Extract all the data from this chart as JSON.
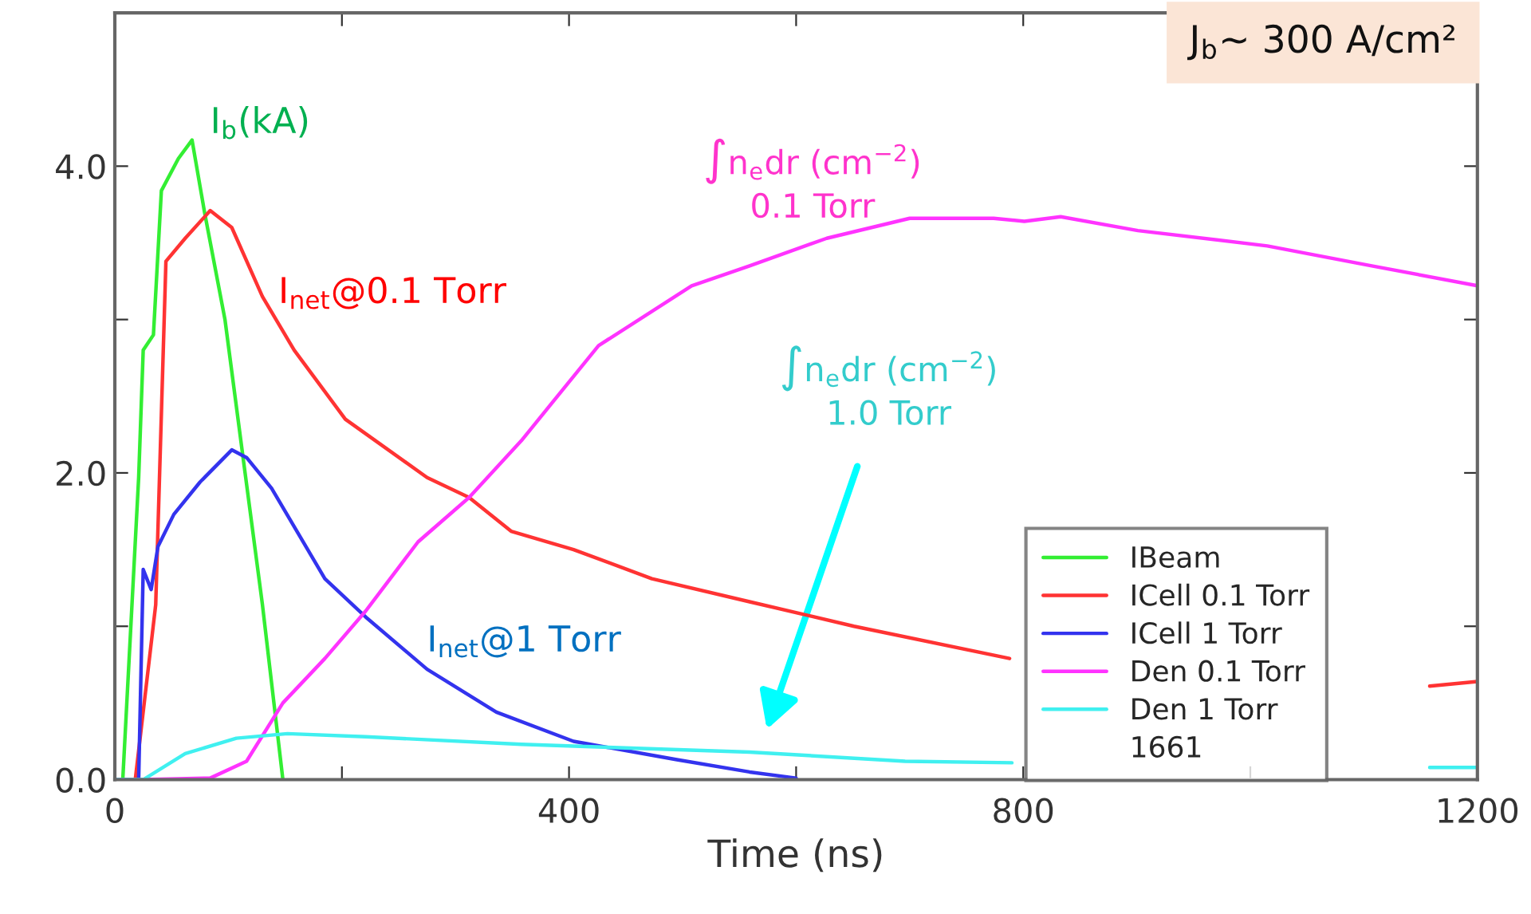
{
  "chart_data": {
    "type": "line",
    "xlabel": "Time (ns)",
    "xlim": [
      0,
      1200
    ],
    "ylim": [
      0,
      5
    ],
    "xticks": [
      0,
      {
        "value": 200,
        "label": null
      },
      400,
      {
        "value": 600,
        "label": null
      },
      800,
      {
        "value": 1000,
        "label": null
      },
      1200
    ],
    "yticks": [
      {
        "value": 0,
        "label": "0.0"
      },
      {
        "value": 1,
        "label": null
      },
      {
        "value": 2,
        "label": "2.0"
      },
      {
        "value": 3,
        "label": null
      },
      {
        "value": 4,
        "label": "4.0"
      }
    ],
    "grid": false,
    "legend": "bottom right",
    "line_style": "solid",
    "marker": "none",
    "series": [
      {
        "name": "IBeam",
        "color": "#33ee33",
        "x": [
          0,
          7,
          21,
          25,
          34,
          41,
          56,
          68,
          79,
          97,
          114,
          130,
          148
        ],
        "values": [
          0,
          0,
          1.97,
          2.8,
          2.9,
          3.84,
          4.05,
          4.17,
          3.7,
          3.0,
          2.04,
          1.14,
          0
        ]
      },
      {
        "name": "ICell 0.1 Torr",
        "color": "#ff3333",
        "x": [
          0,
          18,
          36,
          45,
          62,
          84,
          103,
          130,
          158,
          203,
          275,
          312,
          349,
          404,
          473,
          559,
          651,
          788,
          900,
          1158,
          1200
        ],
        "values": [
          0,
          0,
          1.14,
          3.38,
          3.53,
          3.71,
          3.6,
          3.15,
          2.8,
          2.35,
          1.97,
          1.84,
          1.62,
          1.5,
          1.31,
          1.16,
          1.0,
          0.79,
          null,
          0.61,
          0.64
        ]
      },
      {
        "name": "ICell 1 Torr",
        "color": "#3333ee",
        "x": [
          0,
          21,
          25,
          32,
          38,
          52,
          75,
          103,
          116,
          138,
          185,
          221,
          275,
          336,
          404,
          495,
          559,
          600
        ],
        "values": [
          0,
          0,
          1.37,
          1.24,
          1.52,
          1.73,
          1.94,
          2.15,
          2.1,
          1.9,
          1.31,
          1.06,
          0.72,
          0.44,
          0.25,
          0.13,
          0.05,
          0.01
        ]
      },
      {
        "name": "Den 0.1 Torr",
        "color": "#ff33ff",
        "x": [
          0,
          25,
          84,
          116,
          148,
          185,
          221,
          267,
          312,
          358,
          426,
          508,
          559,
          627,
          700,
          774,
          801,
          833,
          901,
          1015,
          1107,
          1200
        ],
        "values": [
          0,
          0,
          0.01,
          0.12,
          0.5,
          0.79,
          1.1,
          1.55,
          1.84,
          2.21,
          2.83,
          3.22,
          3.35,
          3.53,
          3.66,
          3.66,
          3.64,
          3.67,
          3.58,
          3.48,
          3.35,
          3.22
        ]
      },
      {
        "name": "Den 1 Torr",
        "color": "#40f0f0",
        "x": [
          0,
          25,
          62,
          107,
          152,
          221,
          358,
          559,
          696,
          790,
          900,
          1158,
          1200
        ],
        "values": [
          0,
          0,
          0.17,
          0.27,
          0.3,
          0.28,
          0.23,
          0.18,
          0.12,
          0.11,
          null,
          0.08,
          0.08
        ]
      }
    ],
    "annotations": [
      "I$_{b}$(kA)",
      "I$_{net}$@0.1 Torr",
      "∫n$_{e}$dr (cm$^{−2}$)\n0.1 Torr",
      "∫n$_{e}$dr (cm$^{−2}$)\n1.0 Torr",
      "I$_{net}$@1 Torr",
      "J$_{b}$~ 300 A/cm²",
      "1661"
    ]
  }
}
